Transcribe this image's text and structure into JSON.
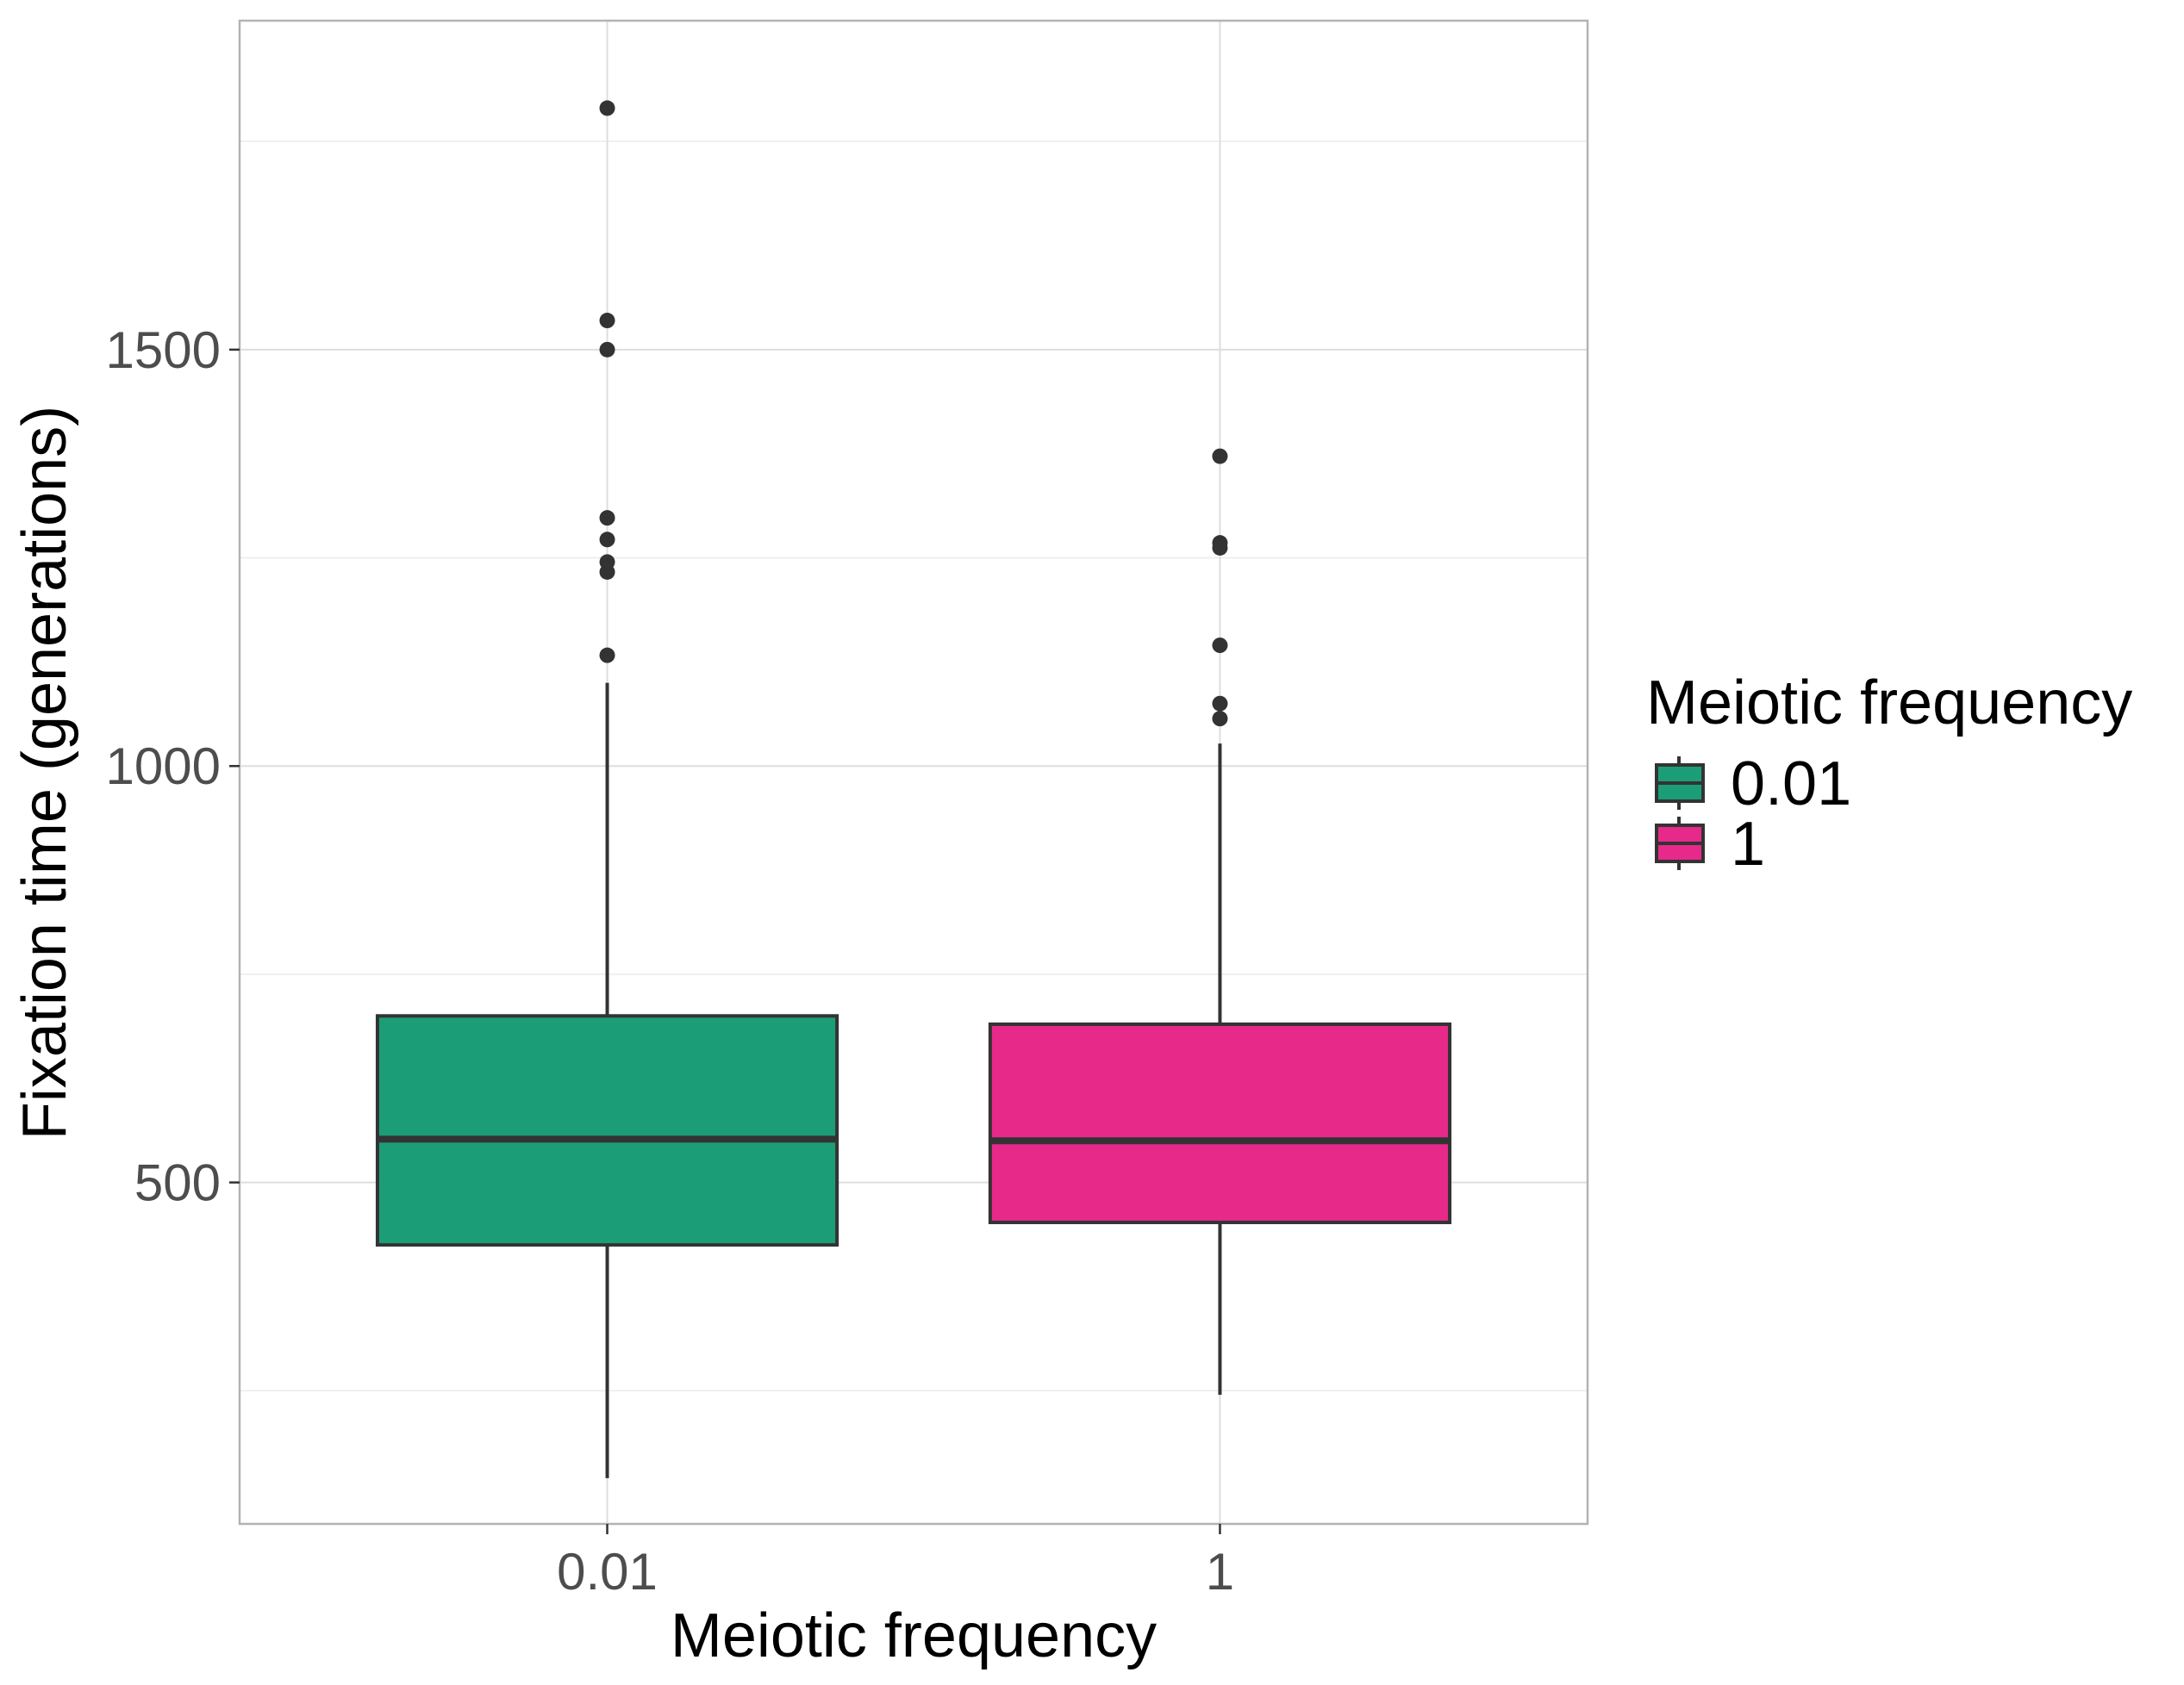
{
  "chart_data": {
    "type": "boxplot",
    "xlabel": "Meiotic frequency",
    "ylabel": "Fixation time (generations)",
    "categories": [
      "0.01",
      "1"
    ],
    "ylim": [
      90,
      1895
    ],
    "yticks": [
      500,
      1000,
      1500
    ],
    "grid": true,
    "legend": {
      "title": "Meiotic frequency",
      "position": "right",
      "entries": [
        "0.01",
        "1"
      ]
    },
    "colors": {
      "0.01": "#1b9e77",
      "1": "#e7298a"
    },
    "boxes": [
      {
        "category": "0.01",
        "whisker_low": 145,
        "q1": 425,
        "median": 552,
        "q3": 700,
        "whisker_high": 1100,
        "outliers": [
          1790,
          1535,
          1500,
          1298,
          1272,
          1245,
          1233,
          1133
        ]
      },
      {
        "category": "1",
        "whisker_low": 245,
        "q1": 452,
        "median": 550,
        "q3": 690,
        "whisker_high": 1027,
        "outliers": [
          1372,
          1268,
          1262,
          1145,
          1075,
          1057
        ]
      }
    ]
  }
}
